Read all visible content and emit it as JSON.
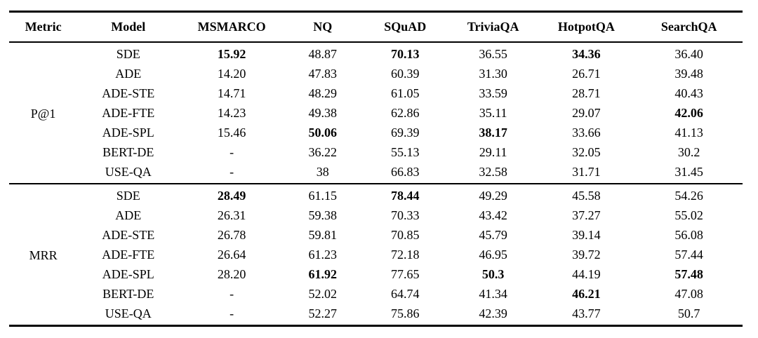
{
  "table": {
    "columns": [
      "Metric",
      "Model",
      "MSMARCO",
      "NQ",
      "SQuAD",
      "TriviaQA",
      "HotpotQA",
      "SearchQA"
    ],
    "groups": [
      {
        "metric": "P@1",
        "rows": [
          {
            "model": "SDE",
            "values": [
              "15.92",
              "48.87",
              "70.13",
              "36.55",
              "34.36",
              "36.40"
            ],
            "bold": [
              true,
              false,
              true,
              false,
              true,
              false
            ]
          },
          {
            "model": "ADE",
            "values": [
              "14.20",
              "47.83",
              "60.39",
              "31.30",
              "26.71",
              "39.48"
            ],
            "bold": [
              false,
              false,
              false,
              false,
              false,
              false
            ]
          },
          {
            "model": "ADE-STE",
            "values": [
              "14.71",
              "48.29",
              "61.05",
              "33.59",
              "28.71",
              "40.43"
            ],
            "bold": [
              false,
              false,
              false,
              false,
              false,
              false
            ]
          },
          {
            "model": "ADE-FTE",
            "values": [
              "14.23",
              "49.38",
              "62.86",
              "35.11",
              "29.07",
              "42.06"
            ],
            "bold": [
              false,
              false,
              false,
              false,
              false,
              true
            ]
          },
          {
            "model": "ADE-SPL",
            "values": [
              "15.46",
              "50.06",
              "69.39",
              "38.17",
              "33.66",
              "41.13"
            ],
            "bold": [
              false,
              true,
              false,
              true,
              false,
              false
            ]
          },
          {
            "model": "BERT-DE",
            "values": [
              "-",
              "36.22",
              "55.13",
              "29.11",
              "32.05",
              "30.2"
            ],
            "bold": [
              false,
              false,
              false,
              false,
              false,
              false
            ]
          },
          {
            "model": "USE-QA",
            "values": [
              "-",
              "38",
              "66.83",
              "32.58",
              "31.71",
              "31.45"
            ],
            "bold": [
              false,
              false,
              false,
              false,
              false,
              false
            ]
          }
        ]
      },
      {
        "metric": "MRR",
        "rows": [
          {
            "model": "SDE",
            "values": [
              "28.49",
              "61.15",
              "78.44",
              "49.29",
              "45.58",
              "54.26"
            ],
            "bold": [
              true,
              false,
              true,
              false,
              false,
              false
            ]
          },
          {
            "model": "ADE",
            "values": [
              "26.31",
              "59.38",
              "70.33",
              "43.42",
              "37.27",
              "55.02"
            ],
            "bold": [
              false,
              false,
              false,
              false,
              false,
              false
            ]
          },
          {
            "model": "ADE-STE",
            "values": [
              "26.78",
              "59.81",
              "70.85",
              "45.79",
              "39.14",
              "56.08"
            ],
            "bold": [
              false,
              false,
              false,
              false,
              false,
              false
            ]
          },
          {
            "model": "ADE-FTE",
            "values": [
              "26.64",
              "61.23",
              "72.18",
              "46.95",
              "39.72",
              "57.44"
            ],
            "bold": [
              false,
              false,
              false,
              false,
              false,
              false
            ]
          },
          {
            "model": "ADE-SPL",
            "values": [
              "28.20",
              "61.92",
              "77.65",
              "50.3",
              "44.19",
              "57.48"
            ],
            "bold": [
              false,
              true,
              false,
              true,
              false,
              true
            ]
          },
          {
            "model": "BERT-DE",
            "values": [
              "-",
              "52.02",
              "64.74",
              "41.34",
              "46.21",
              "47.08"
            ],
            "bold": [
              false,
              false,
              false,
              false,
              true,
              false
            ]
          },
          {
            "model": "USE-QA",
            "values": [
              "-",
              "52.27",
              "75.86",
              "42.39",
              "43.77",
              "50.7"
            ],
            "bold": [
              false,
              false,
              false,
              false,
              false,
              false
            ]
          }
        ]
      }
    ]
  },
  "colors": {
    "text": "#000000",
    "rule": "#000000",
    "background": "#ffffff"
  }
}
